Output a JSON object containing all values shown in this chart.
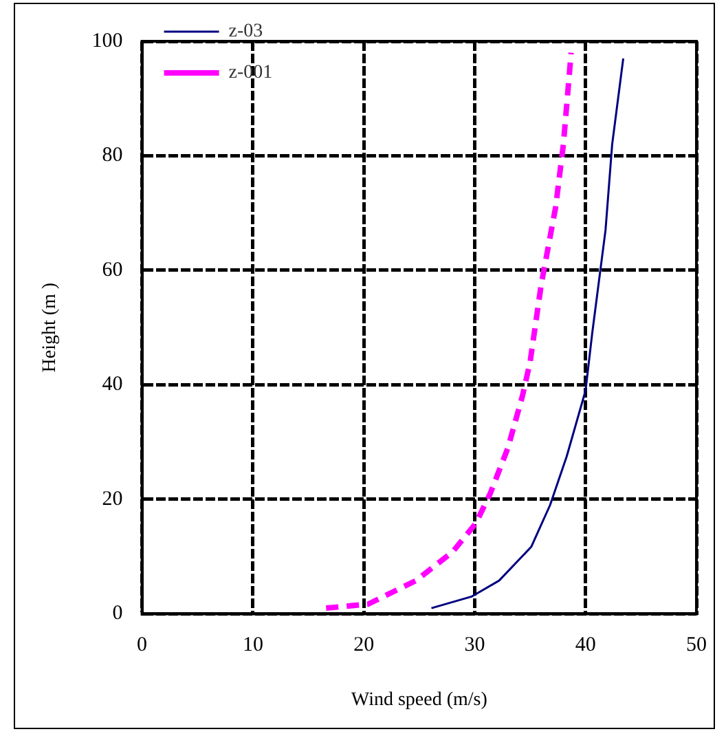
{
  "chart_data": {
    "type": "line",
    "xlabel": "Wind speed (m/s)",
    "ylabel": "Height (m )",
    "xlim": [
      0,
      50
    ],
    "xticks": [
      0,
      10,
      20,
      30,
      40,
      50
    ],
    "ylim": [
      0,
      100
    ],
    "yticks": [
      0,
      20,
      40,
      60,
      80,
      100
    ],
    "grid": true,
    "legend": "top left",
    "marker": "none",
    "series": [
      {
        "name": "z-03",
        "color": "#000080",
        "line_style": "solid",
        "x": [
          26.1,
          29.7,
          32.2,
          35.1,
          36.8,
          38.3,
          40,
          40.6,
          41.4,
          41.8,
          42.4,
          43.4
        ],
        "values": [
          1,
          3,
          5.8,
          11.7,
          19,
          27.5,
          39,
          49,
          61,
          67,
          82,
          97
        ]
      },
      {
        "name": "z-001",
        "color": "#ff00ff",
        "line_style": "dashed",
        "x": [
          16.6,
          20.4,
          24.7,
          28,
          30.1,
          31.4,
          33,
          34.3,
          35,
          36,
          37.3,
          38,
          38.7
        ],
        "values": [
          1,
          1.7,
          5.8,
          10.8,
          15.8,
          21,
          29,
          38,
          44,
          57.5,
          71,
          82,
          98
        ]
      }
    ]
  }
}
